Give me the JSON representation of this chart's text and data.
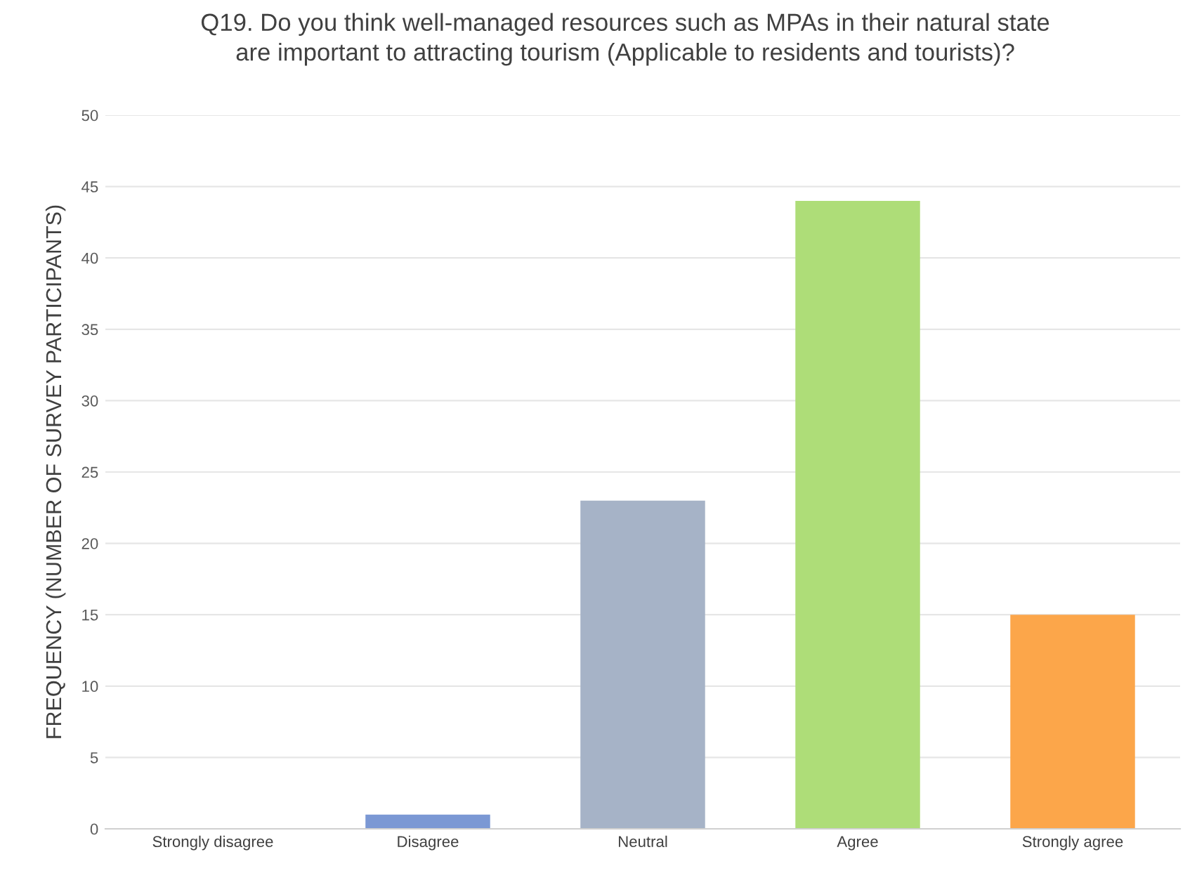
{
  "chart_data": {
    "type": "bar",
    "title": "Q19. Do you think well-managed resources such as MPAs in their natural state\nare important to attracting tourism (Applicable to residents and tourists)?",
    "ylabel": "FREQUENCY (NUMBER OF SURVEY PARTICIPANTS)",
    "categories": [
      "Strongly disagree",
      "Disagree",
      "Neutral",
      "Agree",
      "Strongly agree"
    ],
    "values": [
      0,
      1,
      23,
      44,
      15
    ],
    "colors": [
      "#e57373",
      "#7b98d4",
      "#a6b3c7",
      "#aedd78",
      "#fca64a"
    ],
    "ylim": [
      0,
      50
    ],
    "yticks": [
      0,
      5,
      10,
      15,
      20,
      25,
      30,
      35,
      40,
      45,
      50
    ],
    "grid": "y",
    "legend": false
  }
}
